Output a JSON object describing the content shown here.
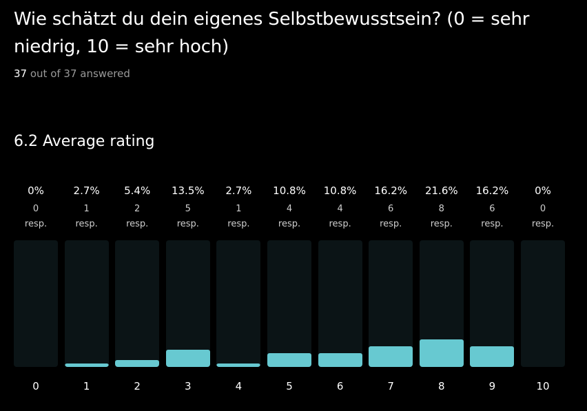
{
  "question": "Wie schätzt du dein eigenes Selbstbewusstsein? (0 = sehr niedrig, 10 = sehr hoch)",
  "answered": {
    "count": "37",
    "text": "out of 37 answered"
  },
  "average_label": "6.2 Average rating",
  "colors": {
    "background": "#000000",
    "track": "#0b1416",
    "bar": "#67c9d1"
  },
  "chart_data": {
    "type": "bar",
    "categories": [
      "0",
      "1",
      "2",
      "3",
      "4",
      "5",
      "6",
      "7",
      "8",
      "9",
      "10"
    ],
    "values": [
      0,
      2.7,
      5.4,
      13.5,
      2.7,
      10.8,
      10.8,
      16.2,
      21.6,
      16.2,
      0
    ],
    "value_labels": [
      "0%",
      "2.7%",
      "5.4%",
      "13.5%",
      "2.7%",
      "10.8%",
      "10.8%",
      "16.2%",
      "21.6%",
      "16.2%",
      "0%"
    ],
    "responses": [
      "0",
      "1",
      "2",
      "5",
      "1",
      "4",
      "4",
      "6",
      "8",
      "6",
      "0"
    ],
    "response_unit": "resp.",
    "ylim": [
      0,
      100
    ]
  }
}
